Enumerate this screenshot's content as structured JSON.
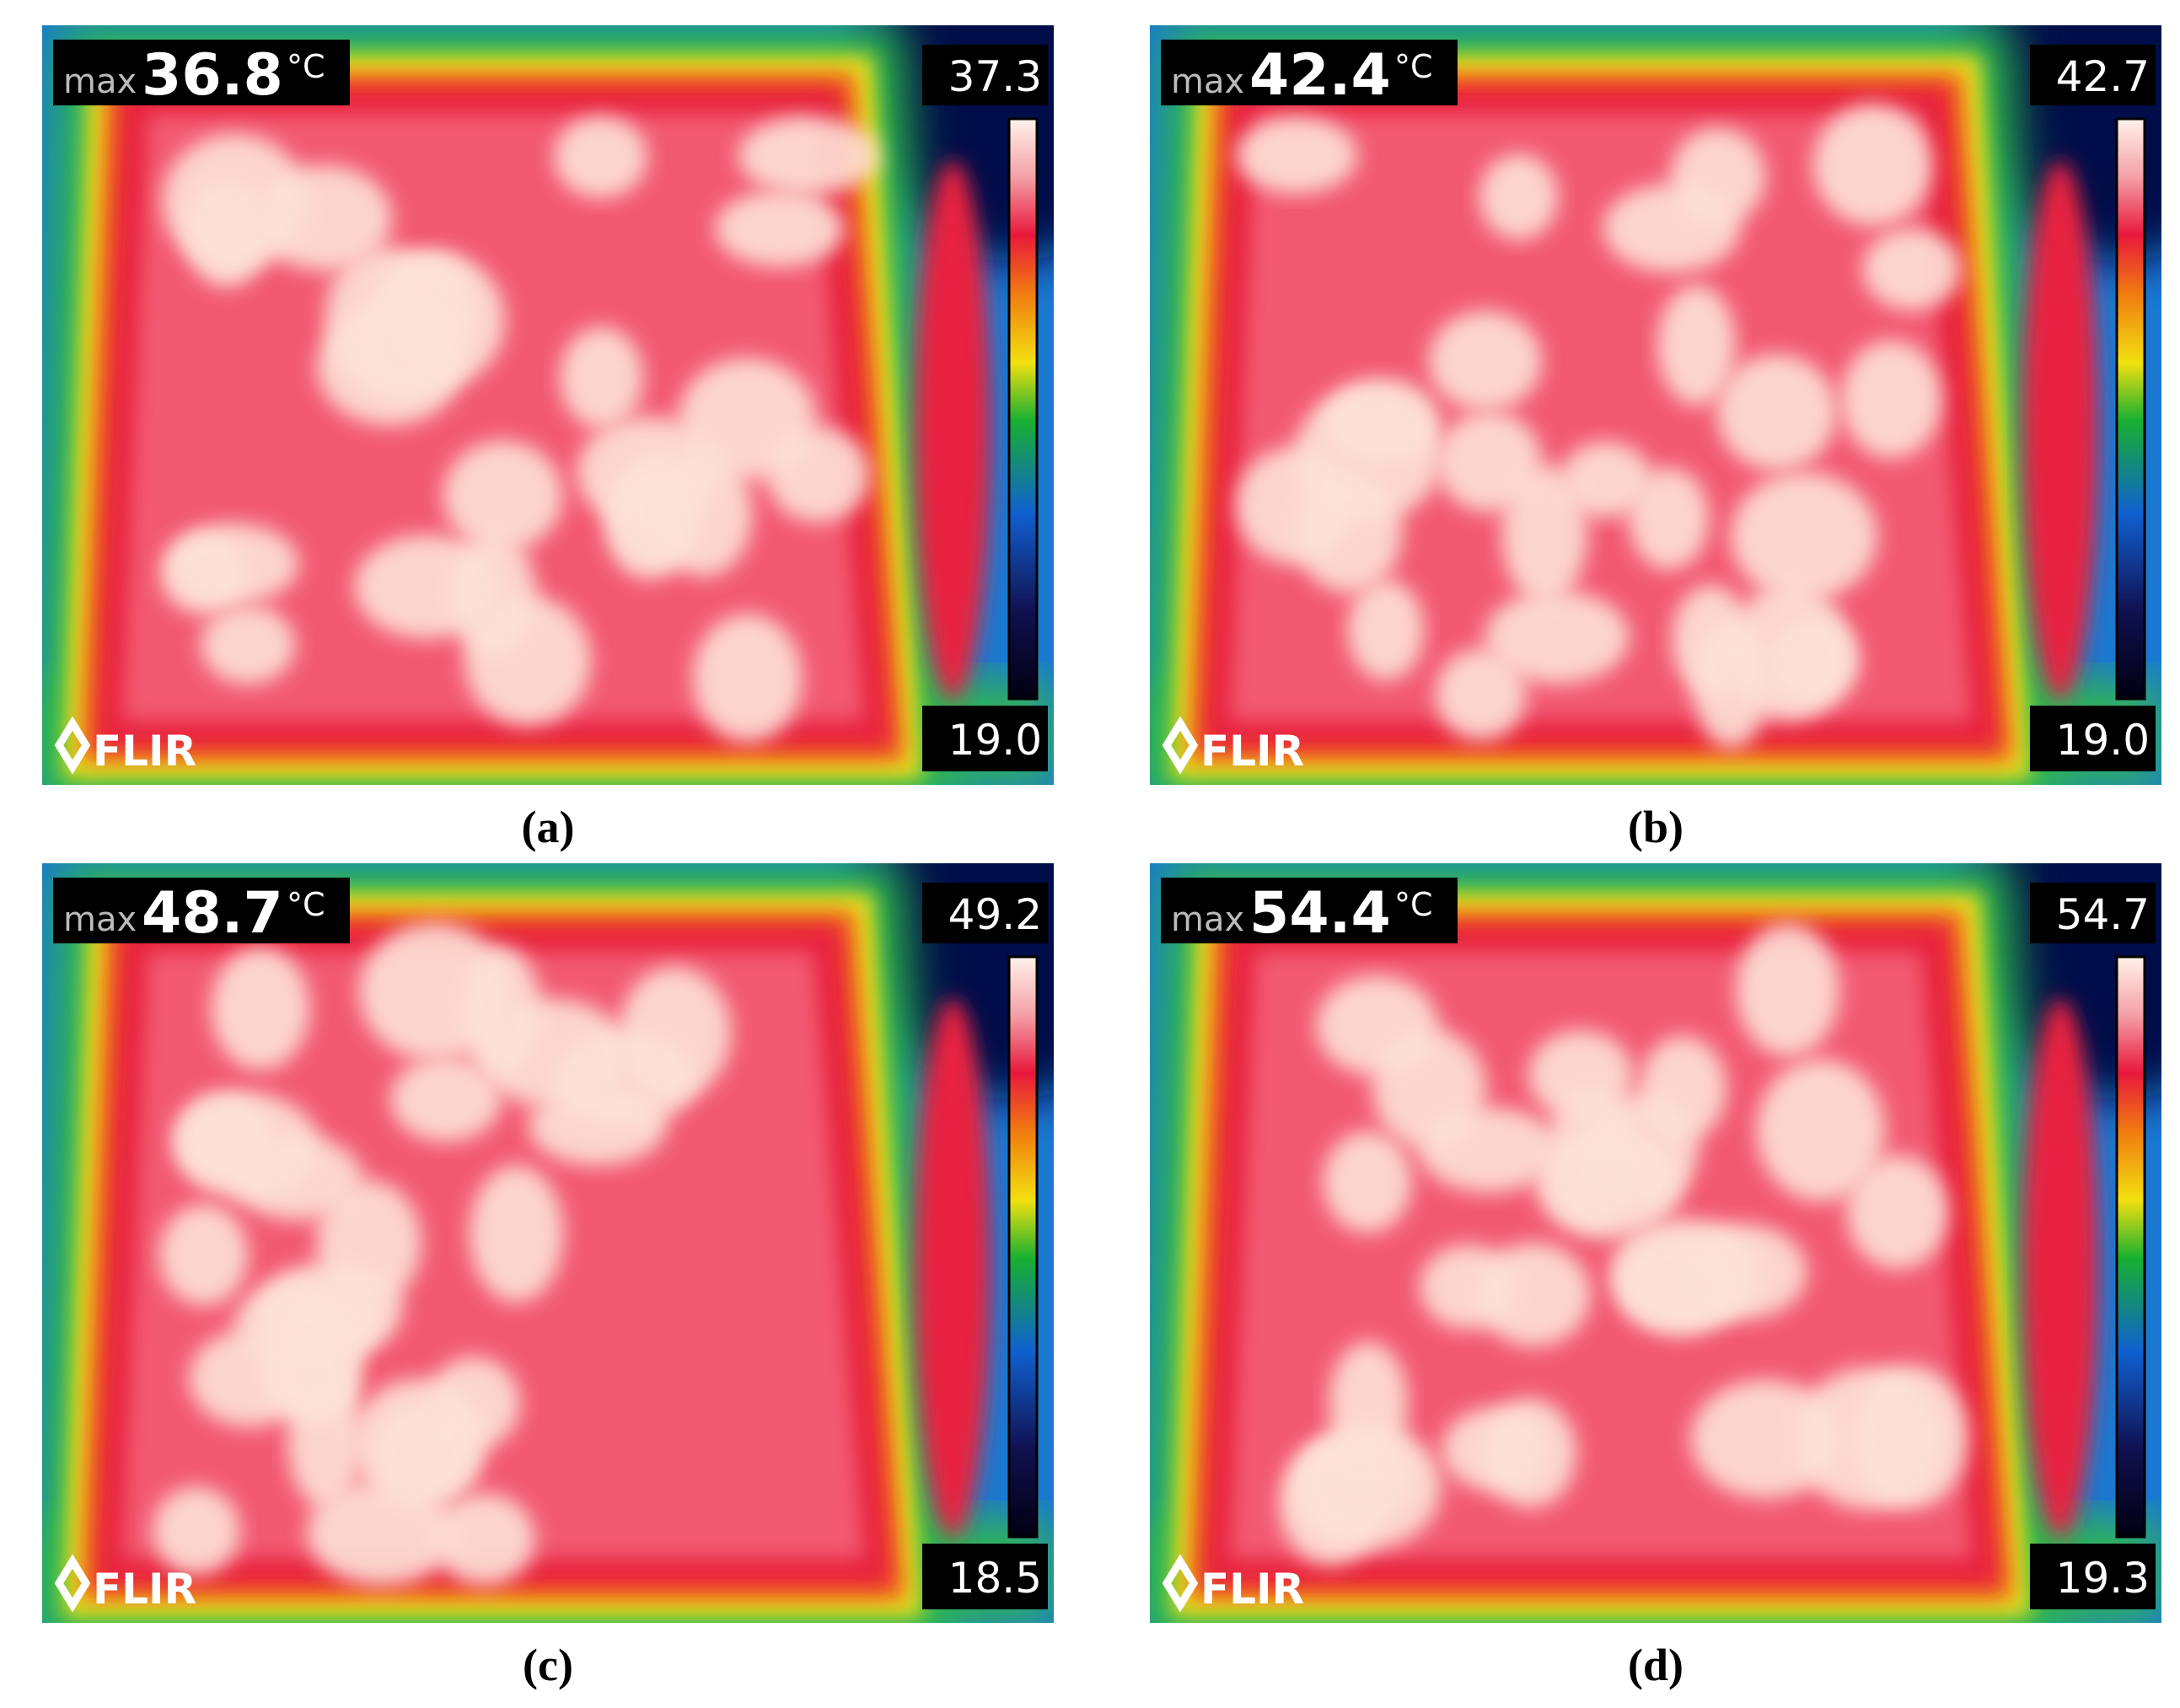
{
  "panels": [
    {
      "max_label": "max",
      "max_value": "36.8",
      "unit": "°C",
      "scale_top": "37.3",
      "scale_bottom": "19.0",
      "logo": "FLIR",
      "caption": "(a)"
    },
    {
      "max_label": "max",
      "max_value": "42.4",
      "unit": "°C",
      "scale_top": "42.7",
      "scale_bottom": "19.0",
      "logo": "FLIR",
      "caption": "(b)"
    },
    {
      "max_label": "max",
      "max_value": "48.7",
      "unit": "°C",
      "scale_top": "49.2",
      "scale_bottom": "18.5",
      "logo": "FLIR",
      "caption": "(c)"
    },
    {
      "max_label": "max",
      "max_value": "54.4",
      "unit": "°C",
      "scale_top": "54.7",
      "scale_bottom": "19.3",
      "logo": "FLIR",
      "caption": "(d)"
    }
  ]
}
